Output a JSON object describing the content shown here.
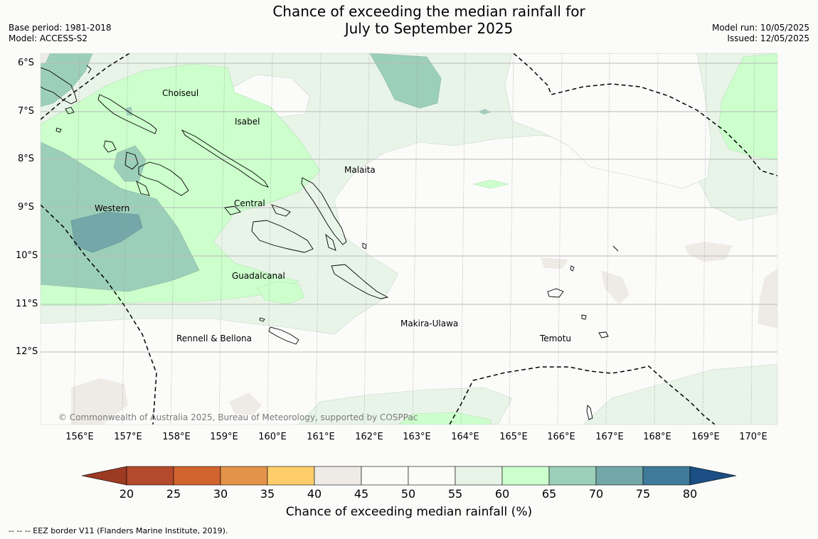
{
  "title_line1": "Chance of exceeding the median rainfall for",
  "title_line2": "July to September 2025",
  "base_period": "Base period: 1981-2018",
  "model": "Model: ACCESS-S2",
  "model_run": "Model run: 10/05/2025",
  "issued": "Issued: 12/05/2025",
  "lat_labels": [
    "6°S",
    "7°S",
    "8°S",
    "9°S",
    "10°S",
    "11°S",
    "12°S"
  ],
  "lon_labels": [
    "156°E",
    "157°E",
    "158°E",
    "159°E",
    "160°E",
    "161°E",
    "162°E",
    "163°E",
    "164°E",
    "165°E",
    "166°E",
    "167°E",
    "168°E",
    "169°E",
    "170°E"
  ],
  "regions": {
    "choiseul": "Choiseul",
    "isabel": "Isabel",
    "malaita": "Malaita",
    "central": "Central",
    "western": "Western",
    "guadalcanal": "Guadalcanal",
    "makira": "Makira-Ulawa",
    "rennell": "Rennell & Bellona",
    "temotu": "Temotu"
  },
  "copyright": "© Commonwealth of Australia 2025, Bureau of Meteorology, supported by COSPPac",
  "colorbar": {
    "ticks": [
      "20",
      "25",
      "30",
      "35",
      "40",
      "45",
      "50",
      "55",
      "60",
      "65",
      "70",
      "75",
      "80"
    ],
    "colors": [
      "#b4492b",
      "#d0632e",
      "#e3944a",
      "#fece6a",
      "#eeebe6",
      "#fbfcfa",
      "#fbfcfa",
      "#e9f4e9",
      "#ccffcc",
      "#9ccfba",
      "#74a8a8",
      "#3f7a9a"
    ],
    "under_color": "#9c3a24",
    "over_color": "#1b4e82",
    "label": "Chance of exceeding median rainfall (%)"
  },
  "eez_note": "--  --  -- EEZ border V11 (Flanders Marine Institute, 2019)."
}
